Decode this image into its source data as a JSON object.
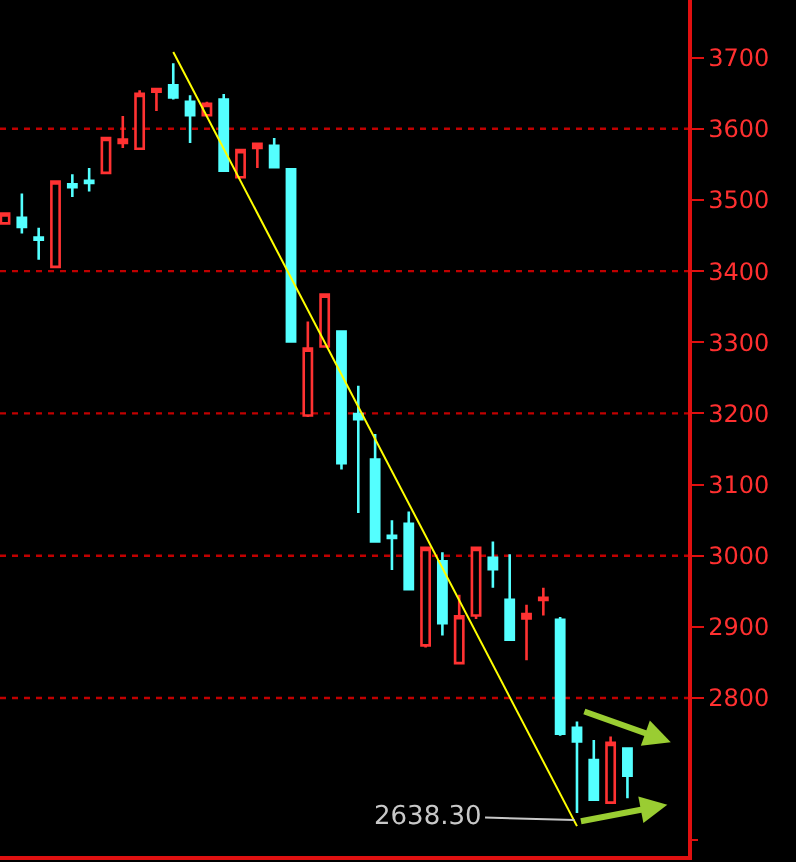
{
  "chart_data": {
    "type": "candlestick",
    "categories": [
      null,
      null,
      null,
      null,
      null,
      null,
      null,
      null,
      null,
      null,
      null,
      null,
      null,
      null,
      null,
      null,
      null,
      null,
      null,
      null,
      null,
      null,
      null,
      null,
      null,
      null,
      null,
      null,
      null,
      null,
      null,
      null,
      null,
      null,
      null,
      null,
      null,
      null
    ],
    "ohlc": [
      [
        3467,
        3481,
        3467,
        3481
      ],
      [
        3475,
        3509,
        3453,
        3462
      ],
      [
        3447,
        3461,
        3416,
        3444
      ],
      [
        3406,
        3526,
        3406,
        3526
      ],
      [
        3522,
        3536,
        3504,
        3518
      ],
      [
        3527,
        3545,
        3512,
        3524
      ],
      [
        3538,
        3587,
        3538,
        3587
      ],
      [
        3580,
        3618,
        3573,
        3585
      ],
      [
        3572,
        3654,
        3572,
        3649
      ],
      [
        3652,
        3656,
        3625,
        3656
      ],
      [
        3661,
        3692,
        3641,
        3644
      ],
      [
        3638,
        3647,
        3580,
        3619
      ],
      [
        3619,
        3638,
        3619,
        3635
      ],
      [
        3641,
        3649,
        3541,
        3541
      ],
      [
        3532,
        3570,
        3532,
        3570
      ],
      [
        3573,
        3579,
        3545,
        3579
      ],
      [
        3576,
        3587,
        3546,
        3546
      ],
      [
        3543,
        3545,
        3301,
        3301
      ],
      [
        3197,
        3329,
        3195,
        3291
      ],
      [
        3294,
        3367,
        3294,
        3367
      ],
      [
        3315,
        3315,
        3121,
        3130
      ],
      [
        3199,
        3239,
        3060,
        3192
      ],
      [
        3135,
        3171,
        3020,
        3020
      ],
      [
        3028,
        3050,
        2980,
        3025
      ],
      [
        3045,
        3062,
        2953,
        2953
      ],
      [
        2874,
        3011,
        2871,
        3011
      ],
      [
        2992,
        3005,
        2888,
        2905
      ],
      [
        2849,
        2945,
        2849,
        2915
      ],
      [
        2916,
        3011,
        2911,
        3011
      ],
      [
        2997,
        3020,
        2955,
        2981
      ],
      [
        2938,
        3002,
        2882,
        2882
      ],
      [
        2912,
        2931,
        2853,
        2918
      ],
      [
        2938,
        2955,
        2916,
        2941
      ],
      [
        2910,
        2914,
        2747,
        2750
      ],
      [
        2758,
        2767,
        2638.3,
        2739
      ],
      [
        2713,
        2741,
        2657,
        2657
      ],
      [
        2653,
        2746,
        2653,
        2737
      ],
      [
        2729,
        2731,
        2659,
        2691
      ]
    ],
    "colors": [
      "#ff3232",
      "#54ffff",
      "#54ffff",
      "#ff3232",
      "#54ffff",
      "#54ffff",
      "#ff3232",
      "#ff3232",
      "#ff3232",
      "#ff3232",
      "#54ffff",
      "#54ffff",
      "#ff3232",
      "#54ffff",
      "#ff3232",
      "#ff3232",
      "#54ffff",
      "#54ffff",
      "#ff3232",
      "#ff3232",
      "#54ffff",
      "#54ffff",
      "#54ffff",
      "#54ffff",
      "#54ffff",
      "#ff3232",
      "#54ffff",
      "#ff3232",
      "#ff3232",
      "#54ffff",
      "#54ffff",
      "#ff3232",
      "#ff3232",
      "#54ffff",
      "#54ffff",
      "#54ffff",
      "#ff3232",
      "#54ffff"
    ],
    "series": [
      {
        "type": "line",
        "color": "#ffff00",
        "values": [
          null,
          null,
          null,
          null,
          null,
          null,
          null,
          null,
          null,
          null,
          3708,
          null,
          null,
          null,
          null,
          null,
          null,
          null,
          null,
          null,
          null,
          null,
          null,
          null,
          null,
          null,
          null,
          null,
          null,
          null,
          null,
          null,
          null,
          null,
          2620,
          null,
          null,
          null
        ]
      }
    ],
    "annotations": [
      "2638.30"
    ],
    "ref_lines": [
      {
        "axis": "y",
        "value": 3600,
        "color": "#c00000",
        "line_style": "dotted"
      },
      {
        "axis": "y",
        "value": 3400,
        "color": "#c00000",
        "line_style": "dotted"
      },
      {
        "axis": "y",
        "value": 3200,
        "color": "#c00000",
        "line_style": "dotted"
      },
      {
        "axis": "y",
        "value": 3000,
        "color": "#c00000",
        "line_style": "dotted"
      },
      {
        "axis": "y",
        "value": 2800,
        "color": "#c00000",
        "line_style": "dotted"
      }
    ],
    "ylim": [
      2578,
      3781
    ],
    "yticks": [
      2800,
      2900,
      3000,
      3100,
      3200,
      3300,
      3400,
      3500,
      3600,
      3700
    ],
    "tick_labels": "y"
  }
}
